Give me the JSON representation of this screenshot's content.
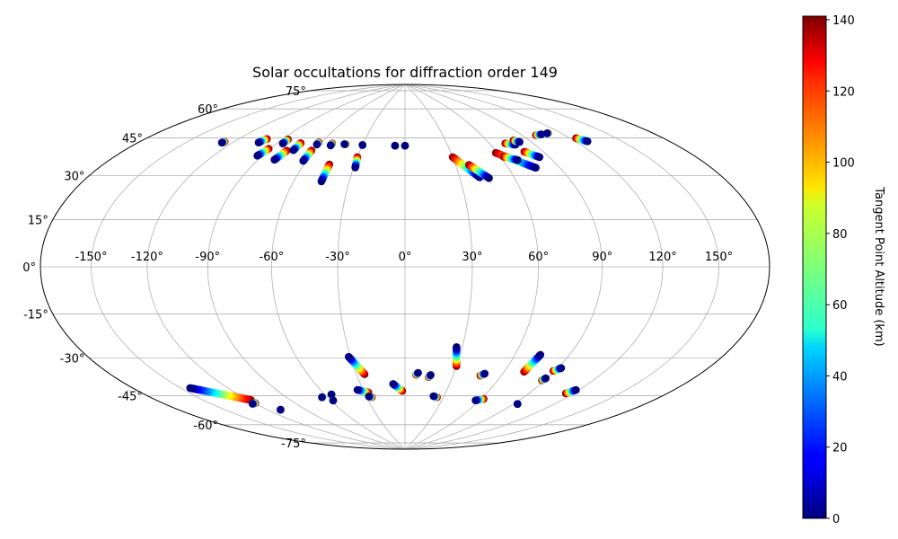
{
  "chart_data": {
    "type": "scatter",
    "projection": "hammer-aitoff",
    "title": "Solar occultations for diffraction order 149",
    "grid": true,
    "lon_ticks": [
      -150,
      -120,
      -90,
      -60,
      -30,
      0,
      30,
      60,
      90,
      120,
      150
    ],
    "lon_tick_labels": [
      "-150°",
      "-120°",
      "-90°",
      "-60°",
      "-30°",
      "0°",
      "30°",
      "60°",
      "90°",
      "120°",
      "150°"
    ],
    "lat_ticks": [
      75,
      60,
      45,
      30,
      15,
      0,
      -15,
      -30,
      -45,
      -60,
      -75
    ],
    "lat_tick_labels": [
      "75°",
      "60°",
      "45°",
      "30°",
      "15°",
      "0°",
      "-15°",
      "-30°",
      "-45°",
      "-60°",
      "-75°"
    ],
    "colorbar": {
      "label": "Tangent Point Altitude (km)",
      "range": [
        0,
        141
      ],
      "ticks": [
        0,
        20,
        40,
        60,
        80,
        100,
        120,
        140
      ],
      "tick_labels": [
        "0",
        "20",
        "40",
        "60",
        "80",
        "100",
        "120",
        "140"
      ],
      "colormap": "jet"
    },
    "tracks": [
      {
        "lon_start": -127,
        "lat_start": 50.5,
        "lon_end": -126,
        "lat_end": 51
      },
      {
        "lon_start": -103,
        "lat_start": 53,
        "lon_end": -101,
        "lat_end": 55
      },
      {
        "lon_start": -93,
        "lat_start": 47.5,
        "lon_end": -91,
        "lat_end": 51
      },
      {
        "lon_start": -86,
        "lat_start": 54,
        "lon_end": -86,
        "lat_end": 56
      },
      {
        "lon_start": -80,
        "lat_start": 46.5,
        "lon_end": -78,
        "lat_end": 51
      },
      {
        "lon_start": -74,
        "lat_start": 51.5,
        "lon_end": -74,
        "lat_end": 55
      },
      {
        "lon_start": -62,
        "lat_start": 47,
        "lon_end": -62,
        "lat_end": 52
      },
      {
        "lon_start": -62,
        "lat_start": 55,
        "lon_end": -62,
        "lat_end": 56
      },
      {
        "lon_start": -52,
        "lat_start": 55,
        "lon_end": -52,
        "lat_end": 56
      },
      {
        "lon_start": -45,
        "lat_start": 38,
        "lon_end": -45,
        "lat_end": 46
      },
      {
        "lon_start": -43,
        "lat_start": 56,
        "lon_end": -42,
        "lat_end": 56
      },
      {
        "lon_start": -29,
        "lat_start": 45,
        "lon_end": -30,
        "lat_end": 50
      },
      {
        "lon_start": -30,
        "lat_start": 56,
        "lon_end": -30,
        "lat_end": 56
      },
      {
        "lon_start": -7,
        "lat_start": 56,
        "lon_end": -7,
        "lat_end": 56
      },
      {
        "lon_start": 0,
        "lat_start": 56,
        "lon_end": 0,
        "lat_end": 56
      },
      {
        "lon_start": 41,
        "lat_start": 40,
        "lon_end": 30,
        "lat_end": 50
      },
      {
        "lon_start": 46,
        "lat_start": 39.5,
        "lon_end": 38,
        "lat_end": 46
      },
      {
        "lon_start": 76,
        "lat_start": 43,
        "lon_end": 59,
        "lat_end": 51
      },
      {
        "lon_start": 69,
        "lat_start": 47,
        "lon_end": 62,
        "lat_end": 49
      },
      {
        "lon_start": 77,
        "lat_start": 54,
        "lon_end": 71,
        "lat_end": 55
      },
      {
        "lon_start": 84,
        "lat_start": 47.5,
        "lon_end": 78,
        "lat_end": 50.5
      },
      {
        "lon_start": 82,
        "lat_start": 55,
        "lon_end": 79,
        "lat_end": 56
      },
      {
        "lon_start": 105,
        "lat_start": 57,
        "lon_end": 100,
        "lat_end": 57
      },
      {
        "lon_start": 110,
        "lat_start": 57,
        "lon_end": 111,
        "lat_end": 57
      },
      {
        "lon_start": 128,
        "lat_start": 51,
        "lon_end": 124,
        "lat_end": 53
      },
      {
        "lon_start": -144,
        "lat_start": -47,
        "lon_end": -118,
        "lat_end": -56
      },
      {
        "lon_start": -122,
        "lat_start": -57.5,
        "lon_end": -119,
        "lat_end": -57.5
      },
      {
        "lon_start": -110,
        "lat_start": -62,
        "lon_end": -110,
        "lat_end": -62
      },
      {
        "lon_start": -64,
        "lat_start": -59,
        "lon_end": -64,
        "lat_end": -59
      },
      {
        "lon_start": -58,
        "lat_start": -61,
        "lon_end": -58,
        "lat_end": -61
      },
      {
        "lon_start": -55,
        "lat_start": -58,
        "lon_end": -55,
        "lat_end": -58
      },
      {
        "lon_start": -31,
        "lat_start": -40.5,
        "lon_end": -25,
        "lat_end": -49
      },
      {
        "lon_start": -34,
        "lat_start": -56.5,
        "lon_end": -27,
        "lat_end": -58
      },
      {
        "lon_start": -28,
        "lat_start": -60,
        "lon_end": -26,
        "lat_end": -60.5
      },
      {
        "lon_start": -8,
        "lat_start": -54,
        "lon_end": -2,
        "lat_end": -57.5
      },
      {
        "lon_start": 8,
        "lat_start": -48.5,
        "lon_end": 7,
        "lat_end": -49.5
      },
      {
        "lon_start": 16,
        "lat_start": -49.5,
        "lon_end": 15,
        "lat_end": -50.5
      },
      {
        "lon_start": 27,
        "lat_start": -36,
        "lon_end": 30,
        "lat_end": -45
      },
      {
        "lon_start": 22,
        "lat_start": -60,
        "lon_end": 25,
        "lat_end": -60.5
      },
      {
        "lon_start": 49,
        "lat_start": -48,
        "lon_end": 47,
        "lat_end": -49
      },
      {
        "lon_start": 57,
        "lat_start": -61,
        "lon_end": 62,
        "lat_end": -60
      },
      {
        "lon_start": 74,
        "lat_start": -38,
        "lon_end": 72,
        "lat_end": -46
      },
      {
        "lon_start": 92,
        "lat_start": -43,
        "lon_end": 89,
        "lat_end": -44.5
      },
      {
        "lon_start": 89,
        "lat_start": -48,
        "lon_end": 88,
        "lat_end": -49
      },
      {
        "lon_start": 93,
        "lat_start": -60.5,
        "lon_end": 93,
        "lat_end": -60.5
      },
      {
        "lon_start": 118,
        "lat_start": -51,
        "lon_end": 115,
        "lat_end": -53
      }
    ]
  }
}
